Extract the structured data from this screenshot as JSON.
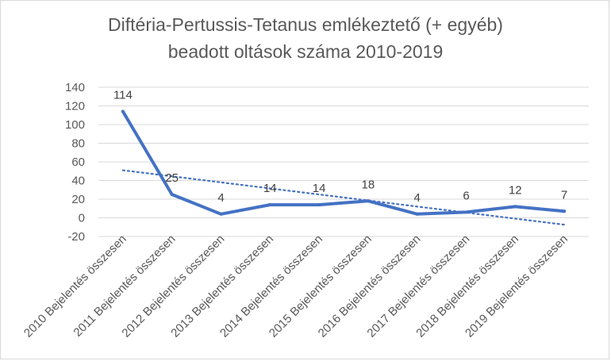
{
  "chart_data": {
    "type": "line",
    "title_lines": [
      "Diftéria-Pertussis-Tetanus emlékeztető (+ egyéb)",
      "beadott oltások száma 2010-2019"
    ],
    "categories": [
      "2010 Bejelentés összesen",
      "2011 Bejelentés összesen",
      "2012 Bejelentés összesen",
      "2013 Bejelentés összesen",
      "2014 Bejelentés összesen",
      "2015 Bejelentés összesen",
      "2016 Bejelentés összesen",
      "2017 Bejelentés összesen",
      "2018 Bejelentés összesen",
      "2019 Bejelentés összesen"
    ],
    "series": [
      {
        "values": [
          114,
          25,
          4,
          14,
          14,
          18,
          4,
          6,
          12,
          7
        ],
        "color": "#4472c4"
      }
    ],
    "data_labels": [
      "114",
      "25",
      "4",
      "14",
      "14",
      "18",
      "4",
      "6",
      "12",
      "7"
    ],
    "trendline": {
      "type": "linear",
      "style": "dotted",
      "color": "#4472c4"
    },
    "ylim": [
      -20,
      140
    ],
    "yticks": [
      "140",
      "120",
      "100",
      "80",
      "60",
      "40",
      "20",
      "0",
      "-20"
    ],
    "ytick_values": [
      140,
      120,
      100,
      80,
      60,
      40,
      20,
      0,
      -20
    ],
    "grid": true,
    "legend": false,
    "xlabel": "",
    "ylabel": ""
  }
}
